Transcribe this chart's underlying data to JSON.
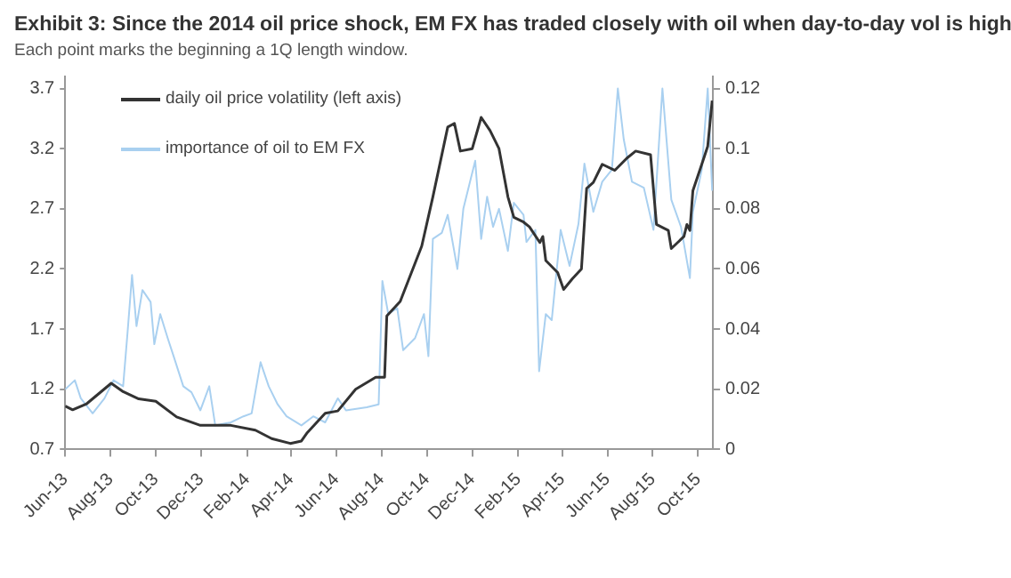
{
  "chart_data": {
    "type": "line",
    "title": "Exhibit 3: Since the 2014 oil price shock, EM FX has traded closely with oil when day-to-day vol is high",
    "subtitle": "Each point marks the beginning a 1Q length window.",
    "xlim": [
      "2013-06-01",
      "2015-10-21"
    ],
    "xticks": [
      {
        "value": "2013-06",
        "label": "Jun-13"
      },
      {
        "value": "2013-08",
        "label": "Aug-13"
      },
      {
        "value": "2013-10",
        "label": "Oct-13"
      },
      {
        "value": "2013-12",
        "label": "Dec-13"
      },
      {
        "value": "2014-02",
        "label": "Feb-14"
      },
      {
        "value": "2014-04",
        "label": "Apr-14"
      },
      {
        "value": "2014-06",
        "label": "Jun-14"
      },
      {
        "value": "2014-08",
        "label": "Aug-14"
      },
      {
        "value": "2014-10",
        "label": "Oct-14"
      },
      {
        "value": "2014-12",
        "label": "Dec-14"
      },
      {
        "value": "2015-02",
        "label": "Feb-15"
      },
      {
        "value": "2015-04",
        "label": "Apr-15"
      },
      {
        "value": "2015-06",
        "label": "Jun-15"
      },
      {
        "value": "2015-08",
        "label": "Aug-15"
      },
      {
        "value": "2015-10",
        "label": "Oct-15"
      }
    ],
    "ylim": [
      0.7,
      3.8
    ],
    "yticks": [
      0.7,
      1.2,
      1.7,
      2.2,
      2.7,
      3.2,
      3.7
    ],
    "y2lim": [
      0,
      0.124
    ],
    "y2ticks": [
      0,
      0.02,
      0.04,
      0.06,
      0.08,
      0.1,
      0.12
    ],
    "grid": false,
    "legend": "top left",
    "marker": "none",
    "line_style": "solid",
    "series": [
      {
        "name": "daily oil price volatility (left axis)",
        "color": "#333333",
        "axis": "y",
        "x": [
          "2013-06-01",
          "2013-06-11",
          "2013-06-30",
          "2013-08-02",
          "2013-08-18",
          "2013-09-08",
          "2013-10-01",
          "2013-10-29",
          "2013-11-30",
          "2014-01-10",
          "2014-02-12",
          "2014-03-06",
          "2014-03-31",
          "2014-04-15",
          "2014-04-23",
          "2014-05-17",
          "2014-06-03",
          "2014-06-27",
          "2014-07-24",
          "2014-08-05",
          "2014-08-08",
          "2014-08-26",
          "2014-09-24",
          "2014-10-09",
          "2014-10-29",
          "2014-11-07",
          "2014-11-15",
          "2014-12-01",
          "2014-12-13",
          "2014-12-25",
          "2015-01-06",
          "2015-01-18",
          "2015-01-26",
          "2015-02-08",
          "2015-02-16",
          "2015-03-02",
          "2015-03-06",
          "2015-03-10",
          "2015-03-26",
          "2015-04-03",
          "2015-04-15",
          "2015-04-27",
          "2015-05-04",
          "2015-05-13",
          "2015-05-25",
          "2015-06-11",
          "2015-06-27",
          "2015-07-09",
          "2015-07-29",
          "2015-08-06",
          "2015-08-22",
          "2015-08-26",
          "2015-09-12",
          "2015-09-16",
          "2015-09-20",
          "2015-09-24",
          "2015-10-06",
          "2015-10-14",
          "2015-10-20"
        ],
        "values": [
          1.06,
          1.03,
          1.08,
          1.25,
          1.18,
          1.12,
          1.1,
          0.97,
          0.9,
          0.9,
          0.86,
          0.79,
          0.75,
          0.77,
          0.84,
          1.0,
          1.02,
          1.2,
          1.3,
          1.3,
          1.81,
          1.93,
          2.39,
          2.8,
          3.38,
          3.41,
          3.18,
          3.2,
          3.46,
          3.35,
          3.2,
          2.8,
          2.63,
          2.59,
          2.55,
          2.42,
          2.47,
          2.27,
          2.17,
          2.03,
          2.12,
          2.2,
          2.87,
          2.92,
          3.07,
          3.02,
          3.12,
          3.18,
          3.15,
          2.57,
          2.52,
          2.37,
          2.47,
          2.57,
          2.52,
          2.85,
          3.07,
          3.22,
          3.6
        ]
      },
      {
        "name": "importance of oil to EM FX",
        "color": "#a9d0f0",
        "axis": "y2",
        "x": [
          "2013-06-01",
          "2013-06-14",
          "2013-06-22",
          "2013-07-08",
          "2013-07-24",
          "2013-08-05",
          "2013-08-18",
          "2013-08-24",
          "2013-08-30",
          "2013-09-05",
          "2013-09-13",
          "2013-09-24",
          "2013-09-29",
          "2013-10-07",
          "2013-10-17",
          "2013-10-25",
          "2013-11-07",
          "2013-11-18",
          "2013-11-30",
          "2013-12-12",
          "2013-12-20",
          "2014-01-10",
          "2014-01-27",
          "2014-02-07",
          "2014-02-19",
          "2014-03-02",
          "2014-03-14",
          "2014-03-26",
          "2014-04-15",
          "2014-05-01",
          "2014-05-17",
          "2014-06-03",
          "2014-06-14",
          "2014-07-12",
          "2014-07-28",
          "2014-08-02",
          "2014-08-10",
          "2014-08-22",
          "2014-08-30",
          "2014-09-15",
          "2014-09-27",
          "2014-10-03",
          "2014-10-09",
          "2014-10-21",
          "2014-10-29",
          "2014-11-11",
          "2014-11-19",
          "2014-12-05",
          "2014-12-13",
          "2014-12-21",
          "2014-12-29",
          "2015-01-06",
          "2015-01-18",
          "2015-01-26",
          "2015-02-08",
          "2015-02-12",
          "2015-02-24",
          "2015-03-01",
          "2015-03-10",
          "2015-03-18",
          "2015-03-30",
          "2015-04-11",
          "2015-04-23",
          "2015-05-01",
          "2015-05-13",
          "2015-05-25",
          "2015-06-07",
          "2015-06-15",
          "2015-06-23",
          "2015-07-04",
          "2015-07-20",
          "2015-08-02",
          "2015-08-14",
          "2015-08-26",
          "2015-09-08",
          "2015-09-20",
          "2015-09-24",
          "2015-10-06",
          "2015-10-14",
          "2015-10-20"
        ],
        "values": [
          0.02,
          0.023,
          0.017,
          0.012,
          0.017,
          0.023,
          0.021,
          0.039,
          0.058,
          0.041,
          0.053,
          0.049,
          0.035,
          0.045,
          0.037,
          0.031,
          0.021,
          0.019,
          0.013,
          0.021,
          0.008,
          0.009,
          0.011,
          0.012,
          0.029,
          0.021,
          0.015,
          0.011,
          0.008,
          0.011,
          0.009,
          0.017,
          0.013,
          0.014,
          0.015,
          0.056,
          0.045,
          0.047,
          0.033,
          0.037,
          0.045,
          0.031,
          0.07,
          0.072,
          0.078,
          0.06,
          0.08,
          0.096,
          0.07,
          0.084,
          0.074,
          0.08,
          0.066,
          0.082,
          0.078,
          0.069,
          0.073,
          0.026,
          0.045,
          0.043,
          0.073,
          0.061,
          0.075,
          0.095,
          0.079,
          0.089,
          0.093,
          0.12,
          0.103,
          0.089,
          0.087,
          0.073,
          0.12,
          0.083,
          0.074,
          0.057,
          0.079,
          0.093,
          0.12,
          0.086
        ]
      }
    ]
  }
}
